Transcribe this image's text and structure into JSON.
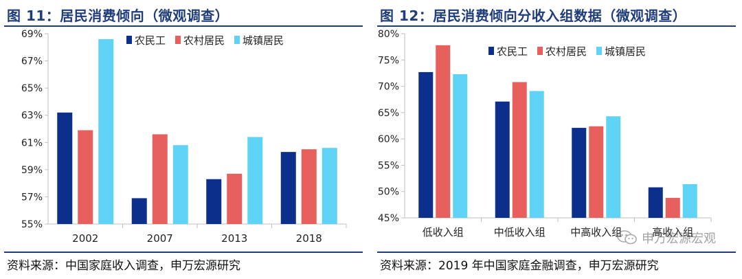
{
  "colors": {
    "title": "#1f3d7a",
    "series": [
      "#0b2f8a",
      "#e8605d",
      "#5fd3f5"
    ]
  },
  "left": {
    "title": "图 11：居民消费倾向（微观调查）",
    "source": "资料来源：中国家庭收入调查，申万宏源研究"
  },
  "right": {
    "title": "图 12：居民消费倾向分收入组数据（微观调查）",
    "source": "资料来源：2019 年中国家庭金融调查，申万宏源研究"
  },
  "watermark": {
    "text": "申万宏源宏观",
    "icon": "wechat-icon"
  },
  "chart_data": [
    {
      "type": "bar",
      "categories": [
        "2002",
        "2007",
        "2013",
        "2018"
      ],
      "series": [
        {
          "name": "农民工",
          "values": [
            63.2,
            56.9,
            58.3,
            60.3
          ]
        },
        {
          "name": "农村居民",
          "values": [
            61.9,
            61.6,
            58.7,
            60.5
          ]
        },
        {
          "name": "城镇居民",
          "values": [
            68.6,
            60.8,
            61.4,
            60.6
          ]
        }
      ],
      "ylim": [
        55,
        69
      ],
      "yticks": [
        "55%",
        "57%",
        "59%",
        "61%",
        "63%",
        "65%",
        "67%",
        "69%"
      ],
      "legend": "top"
    },
    {
      "type": "bar",
      "categories": [
        "低收入组",
        "中低收入组",
        "中高收入组",
        "高收入组"
      ],
      "series": [
        {
          "name": "农民工",
          "values": [
            72.7,
            67.1,
            62.1,
            50.8
          ]
        },
        {
          "name": "农村居民",
          "values": [
            77.8,
            70.8,
            62.4,
            48.8
          ]
        },
        {
          "name": "城镇居民",
          "values": [
            72.3,
            69.1,
            64.3,
            51.4
          ]
        }
      ],
      "ylim": [
        45,
        80
      ],
      "yticks": [
        "45%",
        "50%",
        "55%",
        "60%",
        "65%",
        "70%",
        "75%",
        "80%"
      ],
      "legend": "top"
    }
  ]
}
